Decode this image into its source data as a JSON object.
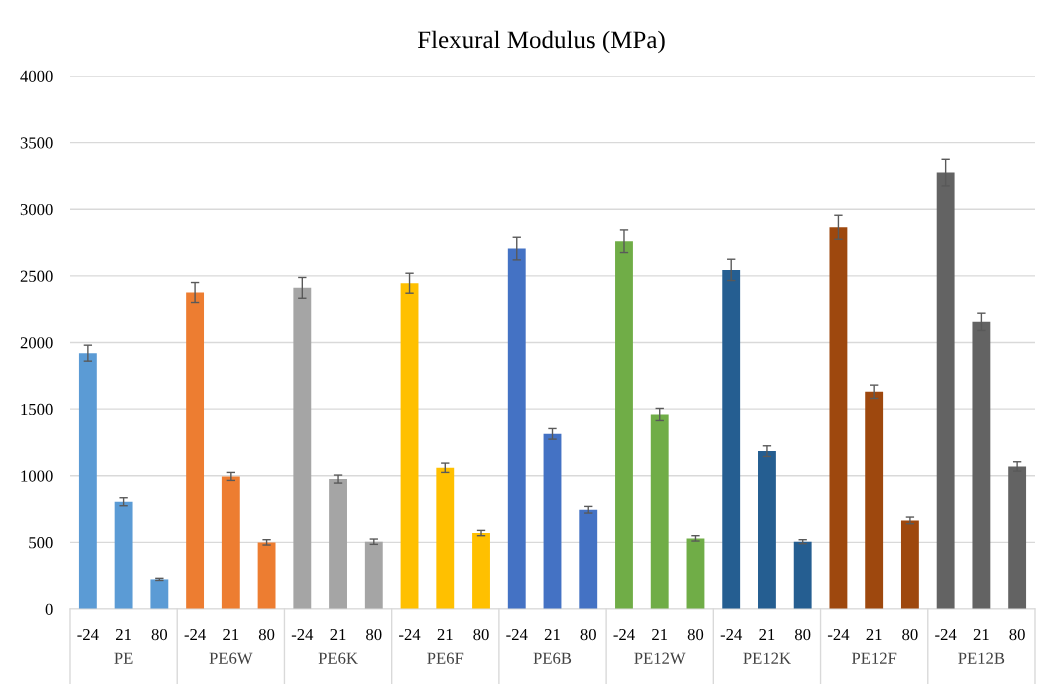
{
  "chart_data": {
    "type": "bar",
    "title": "Flexural Modulus (MPa)",
    "categories": [
      "-24",
      "21",
      "80",
      "-24",
      "21",
      "80",
      "-24",
      "21",
      "80",
      "-24",
      "21",
      "80",
      "-24",
      "21",
      "80",
      "-24",
      "21",
      "80",
      "-24",
      "21",
      "80",
      "-24",
      "21",
      "80",
      "-24",
      "21",
      "80"
    ],
    "series": [
      {
        "name": "PE",
        "color": "#5b9bd5",
        "values": [
          1920,
          805,
          222,
          null,
          null,
          null,
          null,
          null,
          null,
          null,
          null,
          null,
          null,
          null,
          null,
          null,
          null,
          null,
          null,
          null,
          null,
          null,
          null,
          null,
          null,
          null,
          null
        ],
        "errors": [
          60,
          30,
          8,
          null,
          null,
          null,
          null,
          null,
          null,
          null,
          null,
          null,
          null,
          null,
          null,
          null,
          null,
          null,
          null,
          null,
          null,
          null,
          null,
          null,
          null,
          null,
          null
        ]
      },
      {
        "name": "PE6W",
        "color": "#ed7d31",
        "values": [
          null,
          null,
          null,
          2375,
          995,
          500,
          null,
          null,
          null,
          null,
          null,
          null,
          null,
          null,
          null,
          null,
          null,
          null,
          null,
          null,
          null,
          null,
          null,
          null,
          null,
          null,
          null
        ],
        "errors": [
          null,
          null,
          null,
          75,
          30,
          20,
          null,
          null,
          null,
          null,
          null,
          null,
          null,
          null,
          null,
          null,
          null,
          null,
          null,
          null,
          null,
          null,
          null,
          null,
          null,
          null,
          null
        ]
      },
      {
        "name": "PE6K",
        "color": "#a5a5a5",
        "values": [
          null,
          null,
          null,
          null,
          null,
          null,
          2410,
          975,
          505,
          null,
          null,
          null,
          null,
          null,
          null,
          null,
          null,
          null,
          null,
          null,
          null,
          null,
          null,
          null,
          null,
          null,
          null
        ],
        "errors": [
          null,
          null,
          null,
          null,
          null,
          null,
          78,
          30,
          20,
          null,
          null,
          null,
          null,
          null,
          null,
          null,
          null,
          null,
          null,
          null,
          null,
          null,
          null,
          null,
          null,
          null,
          null
        ]
      },
      {
        "name": "PE6F",
        "color": "#ffc000",
        "values": [
          null,
          null,
          null,
          null,
          null,
          null,
          null,
          null,
          null,
          2445,
          1060,
          570,
          null,
          null,
          null,
          null,
          null,
          null,
          null,
          null,
          null,
          null,
          null,
          null,
          null,
          null,
          null
        ],
        "errors": [
          null,
          null,
          null,
          null,
          null,
          null,
          null,
          null,
          null,
          75,
          35,
          20,
          null,
          null,
          null,
          null,
          null,
          null,
          null,
          null,
          null,
          null,
          null,
          null,
          null,
          null,
          null
        ]
      },
      {
        "name": "PE6B",
        "color": "#4472c4",
        "values": [
          null,
          null,
          null,
          null,
          null,
          null,
          null,
          null,
          null,
          null,
          null,
          null,
          2705,
          1315,
          745,
          null,
          null,
          null,
          null,
          null,
          null,
          null,
          null,
          null,
          null,
          null,
          null
        ],
        "errors": [
          null,
          null,
          null,
          null,
          null,
          null,
          null,
          null,
          null,
          null,
          null,
          null,
          85,
          40,
          25,
          null,
          null,
          null,
          null,
          null,
          null,
          null,
          null,
          null,
          null,
          null,
          null
        ]
      },
      {
        "name": "PE12W",
        "color": "#70ad47",
        "values": [
          null,
          null,
          null,
          null,
          null,
          null,
          null,
          null,
          null,
          null,
          null,
          null,
          null,
          null,
          null,
          2760,
          1460,
          530,
          null,
          null,
          null,
          null,
          null,
          null,
          null,
          null,
          null
        ],
        "errors": [
          null,
          null,
          null,
          null,
          null,
          null,
          null,
          null,
          null,
          null,
          null,
          null,
          null,
          null,
          null,
          85,
          45,
          20,
          null,
          null,
          null,
          null,
          null,
          null,
          null,
          null,
          null
        ]
      },
      {
        "name": "PE12K",
        "color": "#255e91",
        "values": [
          null,
          null,
          null,
          null,
          null,
          null,
          null,
          null,
          null,
          null,
          null,
          null,
          null,
          null,
          null,
          null,
          null,
          null,
          2545,
          1185,
          505,
          null,
          null,
          null,
          null,
          null,
          null
        ],
        "errors": [
          null,
          null,
          null,
          null,
          null,
          null,
          null,
          null,
          null,
          null,
          null,
          null,
          null,
          null,
          null,
          null,
          null,
          null,
          80,
          40,
          15,
          null,
          null,
          null,
          null,
          null,
          null
        ]
      },
      {
        "name": "PE12F",
        "color": "#9e480e",
        "values": [
          null,
          null,
          null,
          null,
          null,
          null,
          null,
          null,
          null,
          null,
          null,
          null,
          null,
          null,
          null,
          null,
          null,
          null,
          null,
          null,
          null,
          2865,
          1630,
          665,
          null,
          null,
          null
        ],
        "errors": [
          null,
          null,
          null,
          null,
          null,
          null,
          null,
          null,
          null,
          null,
          null,
          null,
          null,
          null,
          null,
          null,
          null,
          null,
          null,
          null,
          null,
          90,
          50,
          25,
          null,
          null,
          null
        ]
      },
      {
        "name": "PE12B",
        "color": "#636363",
        "values": [
          null,
          null,
          null,
          null,
          null,
          null,
          null,
          null,
          null,
          null,
          null,
          null,
          null,
          null,
          null,
          null,
          null,
          null,
          null,
          null,
          null,
          null,
          null,
          null,
          3275,
          2155,
          1070
        ],
        "errors": [
          null,
          null,
          null,
          null,
          null,
          null,
          null,
          null,
          null,
          null,
          null,
          null,
          null,
          null,
          null,
          null,
          null,
          null,
          null,
          null,
          null,
          null,
          null,
          null,
          100,
          65,
          35
        ]
      }
    ],
    "ylim": [
      0,
      4000
    ],
    "yticks": [
      0,
      500,
      1000,
      1500,
      2000,
      2500,
      3000,
      3500,
      4000
    ],
    "grid": "y",
    "legend": false
  }
}
